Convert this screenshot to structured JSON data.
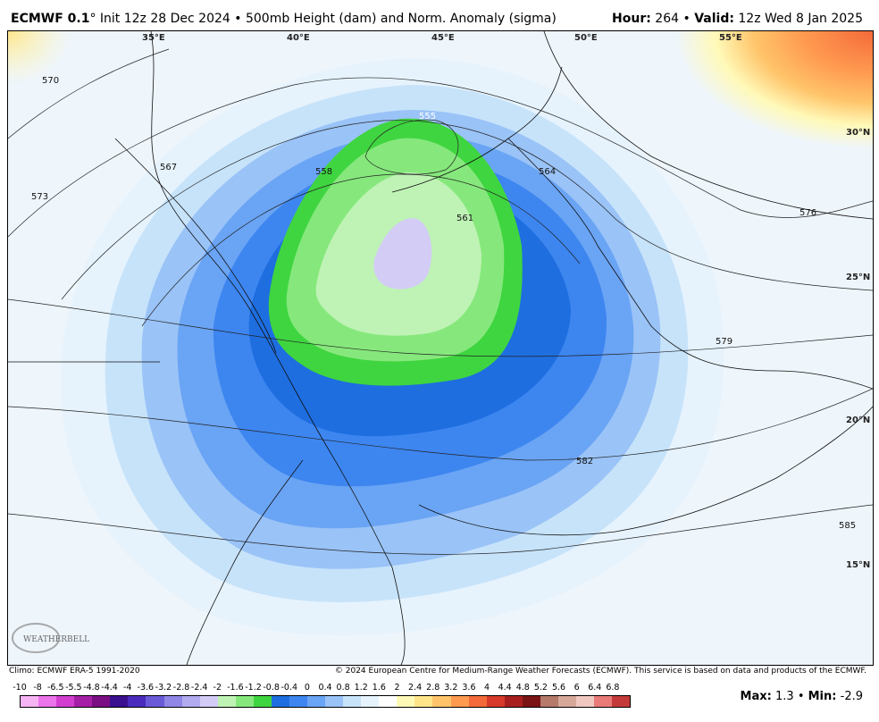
{
  "header": {
    "model": "ECMWF 0.1",
    "degree": "°",
    "init": "Init 12z 28 Dec 2024",
    "sep": "•",
    "product": "500mb Height (dam) and Norm. Anomaly (sigma)",
    "hour_label": "Hour:",
    "hour_value": "264",
    "valid_label": "Valid:",
    "valid_value": "12z Wed 8 Jan 2025"
  },
  "map": {
    "lon_labels": [
      "35°E",
      "40°E",
      "45°E",
      "50°E",
      "55°E"
    ],
    "lat_labels": [
      "30°N",
      "25°N",
      "20°N",
      "15°N"
    ],
    "contour_labels": [
      "570",
      "573",
      "567",
      "558",
      "555",
      "561",
      "564",
      "576",
      "579",
      "582",
      "585"
    ]
  },
  "footer": {
    "climo": "Climo: ECMWF ERA-5 1991-2020",
    "copyright": "© 2024 European Centre for Medium-Range Weather Forecasts (ECMWF). This service is based on data and products of the ECMWF."
  },
  "colorbar": {
    "labels": [
      "-10",
      "-8",
      "-6.5",
      "-5.5",
      "-4.8",
      "-4.4",
      "-4",
      "-3.6",
      "-3.2",
      "-2.8",
      "-2.4",
      "-2",
      "-1.6",
      "-1.2",
      "-0.8",
      "-0.4",
      "0",
      "0.4",
      "0.8",
      "1.2",
      "1.6",
      "2",
      "2.4",
      "2.8",
      "3.2",
      "3.6",
      "4",
      "4.4",
      "4.8",
      "5.2",
      "5.6",
      "6",
      "6.4",
      "6.8"
    ],
    "colors": [
      "#f6b4f4",
      "#ec74ea",
      "#d23fd0",
      "#a51fa6",
      "#7a0e83",
      "#3b108f",
      "#4a2bbd",
      "#6a5ad8",
      "#8f86e6",
      "#b3abf0",
      "#d3cdf6",
      "#bff3b5",
      "#86e87c",
      "#3fd540",
      "#1e6ee0",
      "#3d86f0",
      "#6aa4f4",
      "#9ac3f7",
      "#c7e3fa",
      "#e6f3fd",
      "#ffffff",
      "#fff9b8",
      "#ffe58a",
      "#ffc46a",
      "#ff9a50",
      "#f46a3a",
      "#d63a2a",
      "#a81f1f",
      "#7a1414",
      "#b57a6a",
      "#d6a89a",
      "#f0c8c0",
      "#e87a78",
      "#c43a3a"
    ]
  },
  "stats": {
    "max_label": "Max:",
    "max_value": "1.3",
    "min_label": "Min:",
    "min_value": "-2.9"
  },
  "logo_text": "WEATHERBELL"
}
